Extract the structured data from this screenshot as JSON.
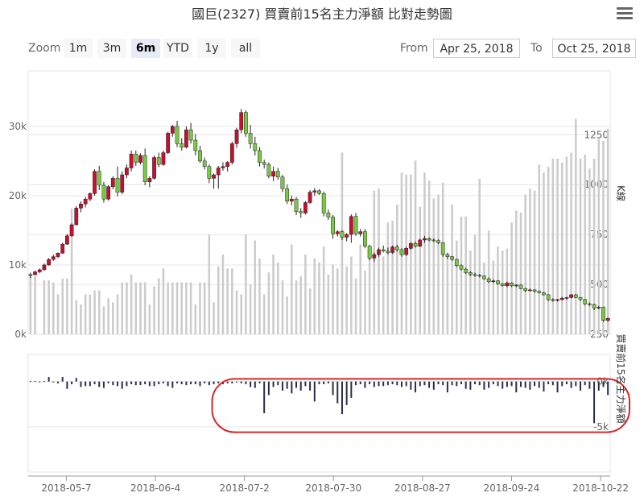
{
  "title": "國巨(2327) 買賣前15名主力淨額 比對走勢圖",
  "menu_icon": "hamburger-menu-icon",
  "zoom": {
    "label": "Zoom",
    "buttons": [
      "1m",
      "3m",
      "6m",
      "YTD",
      "1y",
      "all"
    ],
    "selected": "6m"
  },
  "range": {
    "from_label": "From",
    "from_value": "Apr 25, 2018",
    "to_label": "To",
    "to_value": "Oct 25, 2018"
  },
  "colors": {
    "up": "#c8102e",
    "down": "#7ac943",
    "volume": "#cccccc",
    "net": "#2b2b4a",
    "highlight": "#d62728",
    "grid": "#e6e6e6"
  },
  "chart_data": {
    "type": "candlestick",
    "x_start": "2018-04-25",
    "x_end": "2018-10-25",
    "xticks": [
      "2018-05-7",
      "2018-06-4",
      "2018-07-2",
      "2018-07-30",
      "2018-08-27",
      "2018-09-24",
      "2018-10-22"
    ],
    "price_axis": {
      "ticks": [
        "0k",
        "10k",
        "20k",
        "30k"
      ],
      "values": [
        0,
        10000,
        20000,
        30000
      ],
      "ylim": [
        0,
        38000
      ]
    },
    "volume_axis": {
      "label": "K線",
      "ticks": [
        "250",
        "500",
        "750",
        "1000",
        "1250"
      ],
      "values": [
        250,
        500,
        750,
        1000,
        1250
      ],
      "ylim": [
        250,
        1570
      ]
    },
    "net_axis": {
      "label": "買賣前15名主力淨額",
      "ticks": [
        "0k",
        "-5k"
      ],
      "values": [
        0,
        -5000
      ],
      "ylim": [
        -10000,
        3000
      ]
    },
    "highlight": {
      "shape": "rounded-rect",
      "color": "#d62728",
      "from": "2018-07-04",
      "to": "2018-10-25"
    },
    "candles": [
      [
        8500,
        8900,
        8100,
        8600
      ],
      [
        8600,
        9200,
        8500,
        9000
      ],
      [
        9000,
        9500,
        8800,
        9300
      ],
      [
        9300,
        10200,
        9200,
        10000
      ],
      [
        10000,
        11000,
        9900,
        10800
      ],
      [
        10800,
        11500,
        10600,
        11200
      ],
      [
        11200,
        11800,
        11000,
        11700
      ],
      [
        11700,
        13200,
        11600,
        13000
      ],
      [
        13000,
        14500,
        12900,
        14200
      ],
      [
        14200,
        16000,
        14100,
        15800
      ],
      [
        15800,
        18500,
        15700,
        18200
      ],
      [
        18200,
        19200,
        17600,
        18800
      ],
      [
        18800,
        19800,
        18300,
        19500
      ],
      [
        19500,
        20500,
        19200,
        20300
      ],
      [
        20300,
        23800,
        20000,
        23500
      ],
      [
        23500,
        24300,
        20800,
        21500
      ],
      [
        21500,
        22000,
        19000,
        19500
      ],
      [
        19500,
        21500,
        19300,
        21300
      ],
      [
        21300,
        22800,
        20900,
        22500
      ],
      [
        22500,
        24200,
        19900,
        20500
      ],
      [
        20500,
        23500,
        20200,
        23000
      ],
      [
        23000,
        24500,
        22500,
        24000
      ],
      [
        24000,
        26500,
        23500,
        26000
      ],
      [
        26000,
        26500,
        24300,
        24800
      ],
      [
        24800,
        26100,
        24500,
        25800
      ],
      [
        25800,
        26800,
        21500,
        22000
      ],
      [
        22000,
        22800,
        21200,
        22500
      ],
      [
        22500,
        25800,
        22300,
        25500
      ],
      [
        25500,
        26200,
        24100,
        24500
      ],
      [
        24500,
        26500,
        24300,
        26200
      ],
      [
        26200,
        29200,
        26000,
        29000
      ],
      [
        29000,
        30200,
        28500,
        30000
      ],
      [
        30000,
        30800,
        27000,
        27500
      ],
      [
        27500,
        28300,
        26500,
        27000
      ],
      [
        27000,
        30000,
        26800,
        29500
      ],
      [
        29500,
        30500,
        27500,
        28000
      ],
      [
        28000,
        28900,
        25800,
        26500
      ],
      [
        26500,
        27200,
        24700,
        25000
      ],
      [
        25000,
        25500,
        23800,
        24200
      ],
      [
        24200,
        24500,
        21800,
        22500
      ],
      [
        22500,
        23200,
        21000,
        23000
      ],
      [
        23000,
        24300,
        21000,
        24000
      ],
      [
        24000,
        24800,
        23600,
        24200
      ],
      [
        24200,
        25000,
        23500,
        24800
      ],
      [
        24800,
        27800,
        24500,
        27500
      ],
      [
        27500,
        29800,
        26900,
        29500
      ],
      [
        29500,
        32500,
        29000,
        32000
      ],
      [
        32000,
        32300,
        28500,
        29000
      ],
      [
        29000,
        30200,
        26800,
        27500
      ],
      [
        27500,
        28500,
        25800,
        26500
      ],
      [
        26500,
        27000,
        24200,
        24800
      ],
      [
        24800,
        25200,
        23900,
        24500
      ],
      [
        24500,
        24800,
        22500,
        22800
      ],
      [
        22800,
        24200,
        22100,
        23500
      ],
      [
        23500,
        24000,
        22300,
        22700
      ],
      [
        22700,
        23000,
        20500,
        21000
      ],
      [
        21000,
        21600,
        18800,
        19200
      ],
      [
        19200,
        20000,
        18600,
        19500
      ],
      [
        19500,
        19800,
        17200,
        17700
      ],
      [
        17700,
        18200,
        16800,
        17500
      ],
      [
        17500,
        19200,
        17300,
        19000
      ],
      [
        19000,
        20800,
        18800,
        20500
      ],
      [
        20500,
        21100,
        20000,
        20700
      ],
      [
        20700,
        20900,
        20100,
        20300
      ],
      [
        20300,
        20600,
        17000,
        17500
      ],
      [
        17500,
        18000,
        16500,
        16900
      ],
      [
        16900,
        17200,
        13800,
        14500
      ],
      [
        14500,
        15000,
        14100,
        14800
      ],
      [
        14800,
        15000,
        13600,
        14000
      ],
      [
        14000,
        14600,
        13400,
        14400
      ],
      [
        14400,
        17300,
        13200,
        17000
      ],
      [
        17000,
        17500,
        14200,
        14500
      ],
      [
        14500,
        15200,
        14100,
        14800
      ],
      [
        14800,
        15200,
        12400,
        12700
      ],
      [
        12700,
        12900,
        10700,
        11000
      ],
      [
        11000,
        11800,
        10500,
        11500
      ],
      [
        11500,
        12500,
        11200,
        12200
      ],
      [
        12200,
        12800,
        11800,
        12000
      ],
      [
        12000,
        12500,
        11500,
        11800
      ],
      [
        11800,
        12800,
        11600,
        12600
      ],
      [
        12600,
        12900,
        11900,
        12200
      ],
      [
        12200,
        12400,
        11200,
        11500
      ],
      [
        11500,
        12600,
        11300,
        12400
      ],
      [
        12400,
        13300,
        12200,
        13100
      ],
      [
        13100,
        13400,
        12500,
        12700
      ],
      [
        12700,
        13800,
        12600,
        13600
      ],
      [
        13600,
        14200,
        13200,
        13800
      ],
      [
        13800,
        14000,
        13400,
        13600
      ],
      [
        13600,
        13800,
        13300,
        13500
      ],
      [
        13500,
        13700,
        13000,
        13200
      ],
      [
        13200,
        13300,
        11200,
        11500
      ],
      [
        11500,
        11700,
        10900,
        11200
      ],
      [
        11200,
        11300,
        10600,
        10800
      ],
      [
        10800,
        10900,
        9700,
        9900
      ],
      [
        9900,
        10100,
        9200,
        9400
      ],
      [
        9400,
        9600,
        8700,
        8900
      ],
      [
        8900,
        9100,
        8400,
        8600
      ],
      [
        8600,
        8900,
        8300,
        8500
      ],
      [
        8500,
        8700,
        8200,
        8400
      ],
      [
        8400,
        8500,
        7900,
        8000
      ],
      [
        8000,
        8200,
        7400,
        7600
      ],
      [
        7600,
        7900,
        7400,
        7700
      ],
      [
        7700,
        7800,
        7100,
        7300
      ],
      [
        7300,
        7400,
        6900,
        7000
      ],
      [
        7000,
        7600,
        6800,
        7400
      ],
      [
        7400,
        7500,
        6800,
        7000
      ],
      [
        7000,
        7200,
        6800,
        7100
      ],
      [
        7100,
        7200,
        6500,
        6600
      ],
      [
        6600,
        6700,
        6100,
        6300
      ],
      [
        6300,
        6600,
        6200,
        6400
      ],
      [
        6400,
        6500,
        6000,
        6200
      ],
      [
        6200,
        6300,
        5900,
        6000
      ],
      [
        6000,
        6100,
        5600,
        5700
      ],
      [
        5700,
        5800,
        4800,
        5000
      ],
      [
        5000,
        5200,
        4700,
        4900
      ],
      [
        4900,
        5100,
        4700,
        5000
      ],
      [
        5000,
        5400,
        4900,
        5200
      ],
      [
        5200,
        5400,
        5000,
        5300
      ],
      [
        5300,
        5800,
        5200,
        5700
      ],
      [
        5700,
        5800,
        5200,
        5300
      ],
      [
        5300,
        5400,
        4800,
        5000
      ],
      [
        5000,
        5100,
        4200,
        4400
      ],
      [
        4400,
        4600,
        4100,
        4300
      ],
      [
        4300,
        4400,
        3500,
        3800
      ],
      [
        3800,
        4100,
        3600,
        3900
      ],
      [
        3900,
        4000,
        1800,
        2000
      ],
      [
        2000,
        2400,
        1800,
        2300
      ]
    ],
    "volume": [
      540,
      540,
      250,
      520,
      520,
      510,
      450,
      530,
      530,
      880,
      420,
      400,
      450,
      450,
      470,
      470,
      390,
      430,
      410,
      450,
      510,
      510,
      550,
      510,
      510,
      510,
      400,
      490,
      530,
      580,
      510,
      510,
      510,
      510,
      510,
      510,
      400,
      510,
      510,
      750,
      410,
      590,
      650,
      580,
      580,
      470,
      450,
      750,
      500,
      720,
      630,
      450,
      560,
      650,
      610,
      520,
      440,
      700,
      520,
      540,
      650,
      480,
      630,
      610,
      690,
      550,
      600,
      580,
      1160,
      590,
      640,
      530,
      700,
      570,
      650,
      970,
      980,
      640,
      810,
      820,
      900,
      1060,
      1050,
      1050,
      1120,
      890,
      1060,
      1020,
      930,
      950,
      1010,
      660,
      900,
      720,
      840,
      840,
      670,
      750,
      1030,
      610,
      770,
      620,
      690,
      670,
      680,
      810,
      870,
      860,
      950,
      980,
      970,
      1100,
      1060,
      1090,
      1130,
      1130,
      1110,
      1140,
      1160,
      1330,
      1130,
      1150,
      1080,
      1130,
      1230,
      1220,
      1280
    ],
    "net": [
      50,
      50,
      -40,
      50,
      500,
      -100,
      -200,
      500,
      -800,
      -300,
      400,
      -600,
      -500,
      -500,
      -300,
      -600,
      -700,
      -200,
      -400,
      -500,
      -800,
      -500,
      -300,
      -400,
      -400,
      -300,
      -500,
      -500,
      -300,
      -200,
      -500,
      -700,
      -200,
      -300,
      -400,
      -300,
      -300,
      -500,
      -200,
      -400,
      -300,
      -200,
      -300,
      -200,
      -200,
      -100,
      -200,
      -300,
      -600,
      -700,
      -200,
      -3500,
      -1500,
      -600,
      -400,
      -1000,
      -800,
      -1300,
      -700,
      -1000,
      -500,
      -1000,
      -2200,
      -300,
      -300,
      -200,
      -1500,
      -2400,
      -3600,
      -2600,
      -1800,
      -400,
      -300,
      -700,
      -300,
      -600,
      -500,
      -500,
      -400,
      -300,
      -400,
      -600,
      -500,
      -900,
      -1200,
      -500,
      -400,
      -700,
      -900,
      -300,
      -400,
      -1200,
      -400,
      -500,
      -300,
      -800,
      -900,
      -300,
      -400,
      -900,
      -700,
      -300,
      -500,
      -800,
      -600,
      -500,
      -1200,
      -600,
      -700,
      -900,
      -500,
      -700,
      -1100,
      -300,
      -400,
      -1200,
      -500,
      -300,
      -700,
      -500,
      -1000,
      -400,
      -800,
      -4600,
      -1000,
      -600,
      -1500
    ]
  }
}
